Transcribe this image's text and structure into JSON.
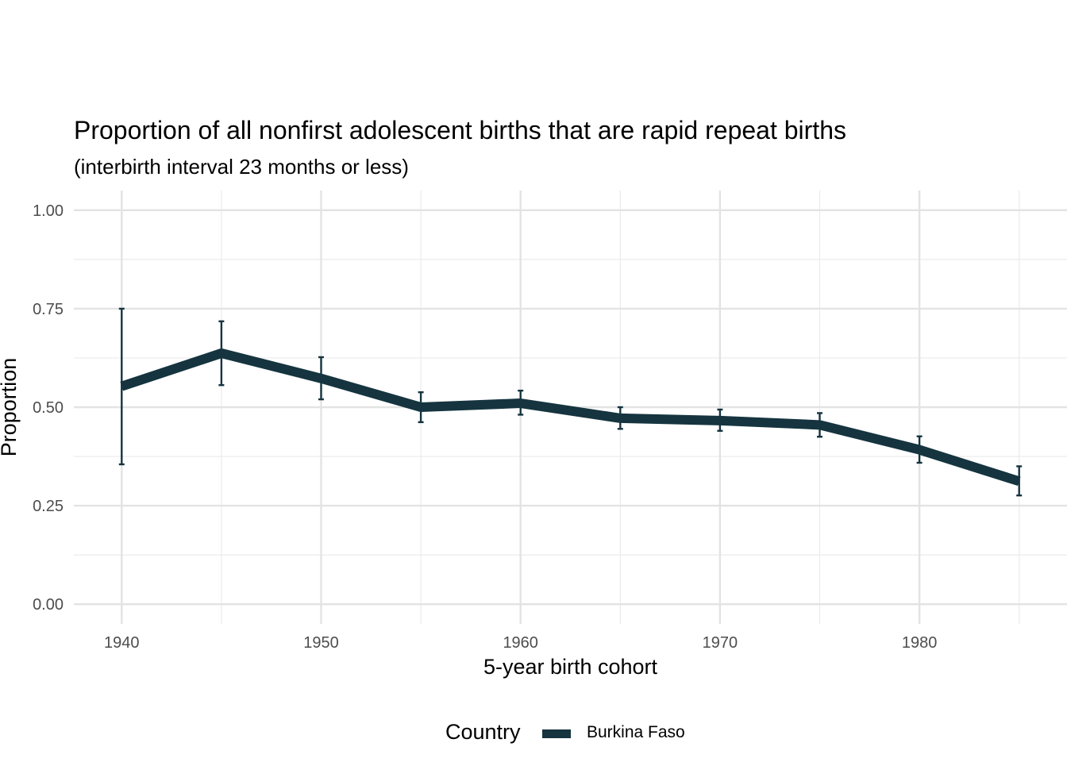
{
  "chart_data": {
    "type": "line",
    "title": "Proportion of all nonfirst adolescent births that are rapid repeat births",
    "subtitle": "(interbirth interval 23 months or less)",
    "xlabel": "5-year birth cohort",
    "ylabel": "Proportion",
    "xlim": [
      1937.6,
      1987.4
    ],
    "ylim": [
      -0.05,
      1.05
    ],
    "x_ticks": [
      1940,
      1950,
      1960,
      1970,
      1980
    ],
    "x_tick_labels": [
      "1940",
      "1950",
      "1960",
      "1970",
      "1980"
    ],
    "y_ticks": [
      0,
      0.25,
      0.5,
      0.75,
      1.0
    ],
    "y_tick_labels": [
      "0.00",
      "0.25",
      "0.50",
      "0.75",
      "1.00"
    ],
    "grid": true,
    "legend": {
      "title": "Country",
      "position": "bottom"
    },
    "series": [
      {
        "name": "Burkina Faso",
        "color": "#15343f",
        "x": [
          1940,
          1945,
          1950,
          1955,
          1960,
          1965,
          1970,
          1975,
          1980,
          1985
        ],
        "y": [
          0.553,
          0.637,
          0.573,
          0.5,
          0.51,
          0.472,
          0.466,
          0.455,
          0.392,
          0.312
        ],
        "lower": [
          0.355,
          0.556,
          0.52,
          0.462,
          0.481,
          0.445,
          0.44,
          0.425,
          0.359,
          0.276
        ],
        "upper": [
          0.75,
          0.718,
          0.627,
          0.538,
          0.542,
          0.5,
          0.494,
          0.485,
          0.426,
          0.35
        ]
      }
    ]
  }
}
